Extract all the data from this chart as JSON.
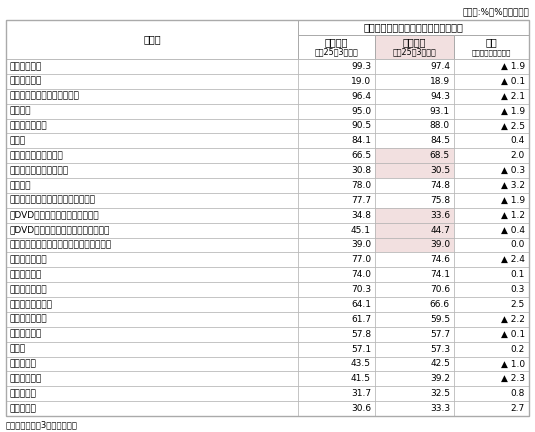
{
  "unit_label": "（単位:%、%ポイント）",
  "header_main": "普及率（所有している世帯数の割合）",
  "col1_header": "訪問調査",
  "col1_sub": "平成25年3月調査",
  "col2_header": "試験調査",
  "col2_sub": "平成25年3月調査",
  "col3_header": "差分",
  "col3_sub": "試験調査－訪問調査",
  "row_header": "品　目",
  "note": "（注）年度末（3月末）現在。",
  "rows": [
    {
      "label": "カラーテレビ",
      "indent": 0,
      "v1": "99.3",
      "v2": "97.4",
      "v3": "▲ 1.9",
      "shaded": false
    },
    {
      "label": "　ブラウン管",
      "indent": 0,
      "v1": "19.0",
      "v2": "18.9",
      "v3": "▲ 0.1",
      "shaded": false
    },
    {
      "label": "　薄型（液晶、プラズマ等）",
      "indent": 0,
      "v1": "96.4",
      "v2": "94.3",
      "v3": "▲ 2.1",
      "shaded": false
    },
    {
      "label": "携帯電話",
      "indent": 0,
      "v1": "95.0",
      "v2": "93.1",
      "v3": "▲ 1.9",
      "shaded": false
    },
    {
      "label": "ルームエアコン",
      "indent": 0,
      "v1": "90.5",
      "v2": "88.0",
      "v3": "▲ 2.5",
      "shaded": false
    },
    {
      "label": "乗用車",
      "indent": 0,
      "v1": "84.1",
      "v2": "84.5",
      "v3": "0.4",
      "shaded": false
    },
    {
      "label": "　新車で購入したもの",
      "indent": 0,
      "v1": "66.5",
      "v2": "68.5",
      "v3": "2.0",
      "shaded": true
    },
    {
      "label": "　中古車で購入したもの",
      "indent": 0,
      "v1": "30.8",
      "v2": "30.5",
      "v3": "▲ 0.3",
      "shaded": true
    },
    {
      "label": "パソコン",
      "indent": 0,
      "v1": "78.0",
      "v2": "74.8",
      "v3": "▲ 3.2",
      "shaded": false
    },
    {
      "label": "光ディスクプレーヤー・レコーダー",
      "indent": 0,
      "v1": "77.7",
      "v2": "75.8",
      "v3": "▲ 1.9",
      "shaded": false
    },
    {
      "label": "　DVDプレーヤー（再生専用機）",
      "indent": 0,
      "v1": "34.8",
      "v2": "33.6",
      "v3": "▲ 1.2",
      "shaded": true
    },
    {
      "label": "　DVDレコーダー（再生録画兼用機）",
      "indent": 0,
      "v1": "45.1",
      "v2": "44.7",
      "v3": "▲ 0.4",
      "shaded": true
    },
    {
      "label": "　ブルーレイ（プレーヤー・レコーダー）",
      "indent": 0,
      "v1": "39.0",
      "v2": "39.0",
      "v3": "0.0",
      "shaded": true
    },
    {
      "label": "デジタルカメラ",
      "indent": 0,
      "v1": "77.0",
      "v2": "74.6",
      "v3": "▲ 2.4",
      "shaded": false
    },
    {
      "label": "温水洗浄便座",
      "indent": 0,
      "v1": "74.0",
      "v2": "74.1",
      "v3": "0.1",
      "shaded": false
    },
    {
      "label": "洗髪洗面化粧台",
      "indent": 0,
      "v1": "70.3",
      "v2": "70.6",
      "v3": "0.3",
      "shaded": false
    },
    {
      "label": "システムキッチン",
      "indent": 0,
      "v1": "64.1",
      "v2": "66.6",
      "v3": "2.5",
      "shaded": false
    },
    {
      "label": "ファンヒーター",
      "indent": 0,
      "v1": "61.7",
      "v2": "59.5",
      "v3": "▲ 2.2",
      "shaded": false
    },
    {
      "label": "ファクシミリ",
      "indent": 0,
      "v1": "57.8",
      "v2": "57.7",
      "v3": "▲ 0.1",
      "shaded": false
    },
    {
      "label": "温水器",
      "indent": 0,
      "v1": "57.1",
      "v2": "57.3",
      "v3": "0.2",
      "shaded": false
    },
    {
      "label": "空気清浄機",
      "indent": 0,
      "v1": "43.5",
      "v2": "42.5",
      "v3": "▲ 1.0",
      "shaded": false
    },
    {
      "label": "ビデオカメラ",
      "indent": 0,
      "v1": "41.5",
      "v2": "39.2",
      "v3": "▲ 2.3",
      "shaded": false
    },
    {
      "label": "衣類乾燥機",
      "indent": 0,
      "v1": "31.7",
      "v2": "32.5",
      "v3": "0.8",
      "shaded": false
    },
    {
      "label": "食器洗い機",
      "indent": 0,
      "v1": "30.6",
      "v2": "33.3",
      "v3": "2.7",
      "shaded": false
    }
  ],
  "bg_color": "#ffffff",
  "shaded_col2_color": "#f2e0e0",
  "border_color": "#aaaaaa",
  "text_color": "#000000",
  "font_size": 6.5,
  "header_font_size": 7.0,
  "sub_font_size": 5.8
}
